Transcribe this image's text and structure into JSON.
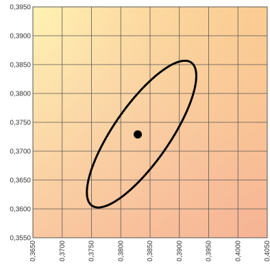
{
  "chart_data": {
    "type": "scatter",
    "x_ticks": [
      "0,3650",
      "0,3700",
      "0,3750",
      "0,3800",
      "0,3850",
      "0,3900",
      "0,3950",
      "0,4000",
      "0,4050"
    ],
    "y_ticks": [
      "0,3550",
      "0,3600",
      "0,3650",
      "0,3700",
      "0,3750",
      "0,3800",
      "0,3850",
      "0,3900",
      "0,3950"
    ],
    "xlim": [
      0.365,
      0.405
    ],
    "ylim": [
      0.355,
      0.395
    ],
    "grid": true,
    "background_gradient": {
      "top_left": "#fff3b3",
      "top_right": "#fcd08a",
      "bottom_left": "#f9c8a0",
      "bottom_right": "#f4a38c"
    },
    "points": [
      {
        "x": 0.3829,
        "y": 0.3729
      }
    ],
    "ellipse": {
      "center": [
        0.38355,
        0.37296
      ],
      "semi_major": 0.01502,
      "semi_minor": 0.00482,
      "angle_deg": 55.8
    },
    "colors": {
      "grid": "#555555",
      "marks": "#000000"
    }
  }
}
